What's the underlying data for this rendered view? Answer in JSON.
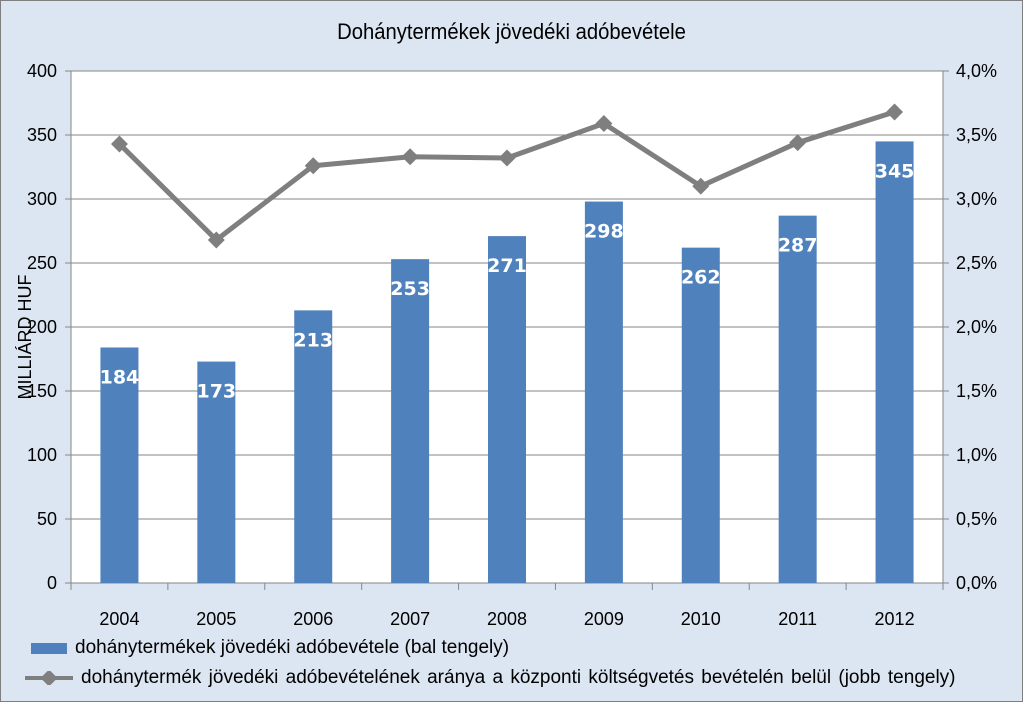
{
  "chart_data": {
    "type": "bar+line",
    "title": "Dohánytermékek jövedéki adóbevétele",
    "categories": [
      "2004",
      "2005",
      "2006",
      "2007",
      "2008",
      "2009",
      "2010",
      "2011",
      "2012"
    ],
    "series": [
      {
        "name": "dohánytermékek jövedéki adóbevétele (bal tengely)",
        "type": "bar",
        "axis": "left",
        "values": [
          184,
          173,
          213,
          253,
          271,
          298,
          262,
          287,
          345
        ],
        "color": "#4f81bd"
      },
      {
        "name": "dohánytermék jövedéki adóbevételének aránya a központi költségvetés bevételén belül (jobb tengely)",
        "type": "line",
        "axis": "right",
        "values": [
          3.43,
          2.68,
          3.26,
          3.33,
          3.32,
          3.59,
          3.1,
          3.44,
          3.68
        ],
        "color": "#7f7f7f"
      }
    ],
    "ylabel": "MILLIÁRD HUF",
    "ylim": [
      0,
      400
    ],
    "y_ticks": [
      "0",
      "50",
      "100",
      "150",
      "200",
      "250",
      "300",
      "350",
      "400"
    ],
    "y2lim": [
      0,
      4
    ],
    "y2_ticks": [
      "0,0%",
      "0,5%",
      "1,0%",
      "1,5%",
      "2,0%",
      "2,5%",
      "3,0%",
      "3,5%",
      "4,0%"
    ],
    "grid": true,
    "legend_position": "bottom"
  }
}
